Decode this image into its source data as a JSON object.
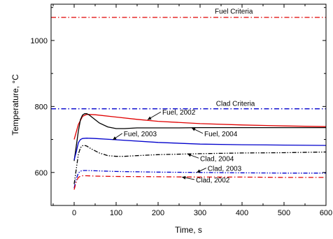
{
  "chart_data": {
    "type": "line",
    "title": "",
    "xlabel": "Time, s",
    "ylabel": "Temperature, °C",
    "xlim": [
      -55,
      600
    ],
    "ylim": [
      500,
      1110
    ],
    "xticks": [
      0,
      100,
      200,
      300,
      400,
      500,
      600
    ],
    "yticks": [
      600,
      800,
      1000
    ],
    "grid": false,
    "series": [
      {
        "name": "Fuel, 2002",
        "color": "#e00000",
        "dash": "solid",
        "x": [
          0,
          10,
          20,
          30,
          50,
          100,
          150,
          200,
          300,
          400,
          500,
          600
        ],
        "y": [
          700,
          745,
          770,
          776,
          775,
          768,
          761,
          755,
          748,
          744,
          741,
          739
        ]
      },
      {
        "name": "Fuel, 2004",
        "color": "#000000",
        "dash": "solid",
        "x": [
          0,
          5,
          10,
          15,
          20,
          25,
          30,
          35,
          40,
          50,
          60,
          80,
          100,
          120,
          150,
          200,
          250,
          300,
          400,
          500,
          600
        ],
        "y": [
          635,
          680,
          725,
          760,
          774,
          778,
          778,
          775,
          770,
          760,
          750,
          738,
          733,
          733,
          735,
          735,
          735,
          736,
          736,
          736,
          736
        ]
      },
      {
        "name": "Fuel, 2003",
        "color": "#0000cc",
        "dash": "solid",
        "x": [
          0,
          5,
          10,
          15,
          20,
          30,
          50,
          100,
          200,
          300,
          400,
          500,
          600
        ],
        "y": [
          638,
          662,
          690,
          700,
          703,
          704,
          703,
          699,
          691,
          686,
          684,
          683,
          682
        ]
      },
      {
        "name": "Clad, 2004",
        "color": "#000000",
        "dash": "dashdotdot",
        "x": [
          0,
          5,
          10,
          15,
          20,
          25,
          30,
          40,
          60,
          80,
          100,
          120,
          150,
          200,
          300,
          400,
          500,
          600
        ],
        "y": [
          565,
          610,
          655,
          675,
          681,
          682,
          680,
          672,
          659,
          651,
          649,
          649,
          651,
          654,
          657,
          659,
          660,
          662
        ]
      },
      {
        "name": "Clad, 2003",
        "color": "#0000cc",
        "dash": "dashdotdot",
        "x": [
          0,
          5,
          10,
          15,
          20,
          30,
          50,
          100,
          200,
          300,
          400,
          500,
          600
        ],
        "y": [
          553,
          580,
          598,
          604,
          606,
          606,
          605,
          603,
          601,
          600,
          599,
          598,
          598
        ]
      },
      {
        "name": "Clad, 2002",
        "color": "#e00000",
        "dash": "dashdot",
        "x": [
          0,
          5,
          10,
          15,
          20,
          30,
          50,
          100,
          200,
          300,
          400,
          500,
          600
        ],
        "y": [
          548,
          572,
          585,
          589,
          590,
          590,
          589,
          588,
          587,
          586,
          586,
          585,
          585
        ]
      },
      {
        "name": "Fuel Criteria",
        "color": "#e00000",
        "dash": "dashdot",
        "x": [
          -55,
          600
        ],
        "y": [
          1070,
          1070
        ]
      },
      {
        "name": "Clad Criteria",
        "color": "#0000cc",
        "dash": "dashdot",
        "x": [
          -55,
          600
        ],
        "y": [
          793,
          793
        ]
      }
    ],
    "annotations": [
      {
        "text": "Fuel Criteria",
        "x": 335,
        "y": 1081,
        "arrow": false
      },
      {
        "text": "Clad Criteria",
        "x": 338,
        "y": 802,
        "arrow": false
      },
      {
        "text": "Fuel, 2002",
        "x": 210,
        "y": 775,
        "arrow": true,
        "point": [
          175,
          760
        ]
      },
      {
        "text": "Fuel, 2003",
        "x": 118,
        "y": 710,
        "arrow": true,
        "point": [
          92,
          699
        ]
      },
      {
        "text": "Fuel, 2004",
        "x": 310,
        "y": 710,
        "arrow": true,
        "point": [
          280,
          735
        ]
      },
      {
        "text": "Clad, 2004",
        "x": 300,
        "y": 635,
        "arrow": true,
        "point": [
          270,
          656
        ]
      },
      {
        "text": "Clad, 2003",
        "x": 318,
        "y": 605,
        "arrow": true,
        "point": [
          292,
          600
        ]
      },
      {
        "text": "Clad, 2002",
        "x": 290,
        "y": 570,
        "arrow": true,
        "point": [
          257,
          586
        ]
      }
    ]
  }
}
